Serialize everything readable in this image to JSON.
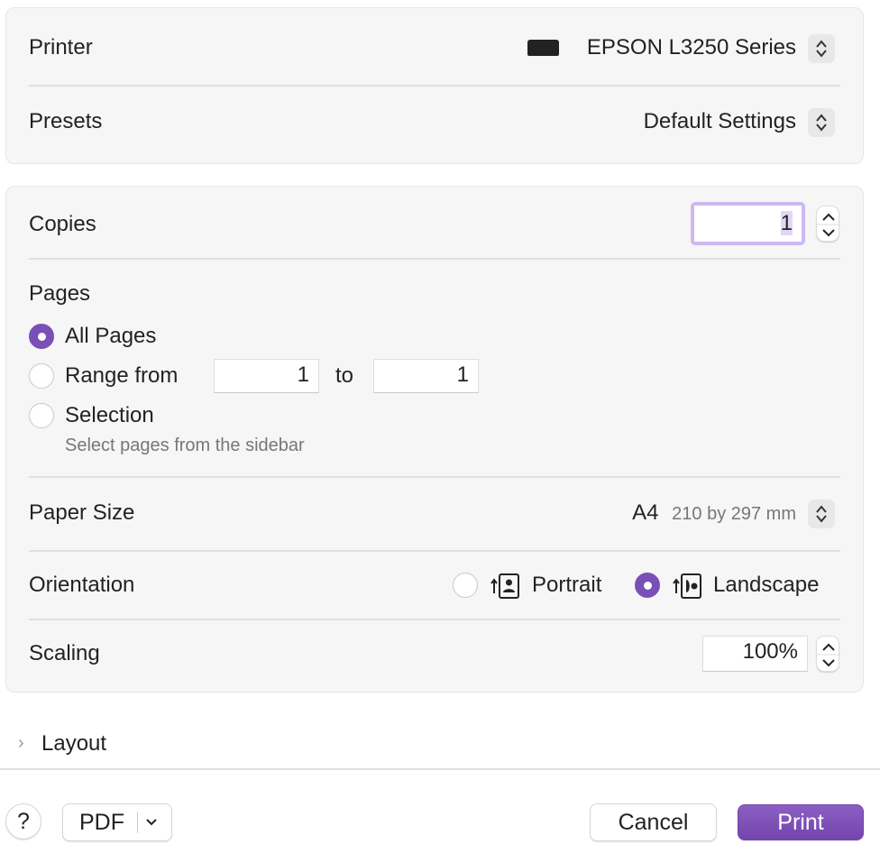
{
  "printer": {
    "label": "Printer",
    "value": "EPSON L3250 Series",
    "icon": "printer-icon"
  },
  "presets": {
    "label": "Presets",
    "value": "Default Settings"
  },
  "copies": {
    "label": "Copies",
    "value": "1"
  },
  "pages": {
    "label": "Pages",
    "all": "All Pages",
    "range": "Range from",
    "range_from": "1",
    "to": "to",
    "range_to": "1",
    "selection": "Selection",
    "selection_hint": "Select pages from the sidebar",
    "selected": "All Pages"
  },
  "paper": {
    "label": "Paper Size",
    "value": "A4",
    "detail": "210 by 297 mm"
  },
  "orientation": {
    "label": "Orientation",
    "portrait": "Portrait",
    "landscape": "Landscape",
    "selected": "Landscape"
  },
  "scaling": {
    "label": "Scaling",
    "value": "100%"
  },
  "layout": {
    "label": "Layout"
  },
  "footer": {
    "help": "?",
    "pdf": "PDF",
    "cancel": "Cancel",
    "print": "Print"
  },
  "colors": {
    "accent": "#7a4fb6"
  }
}
